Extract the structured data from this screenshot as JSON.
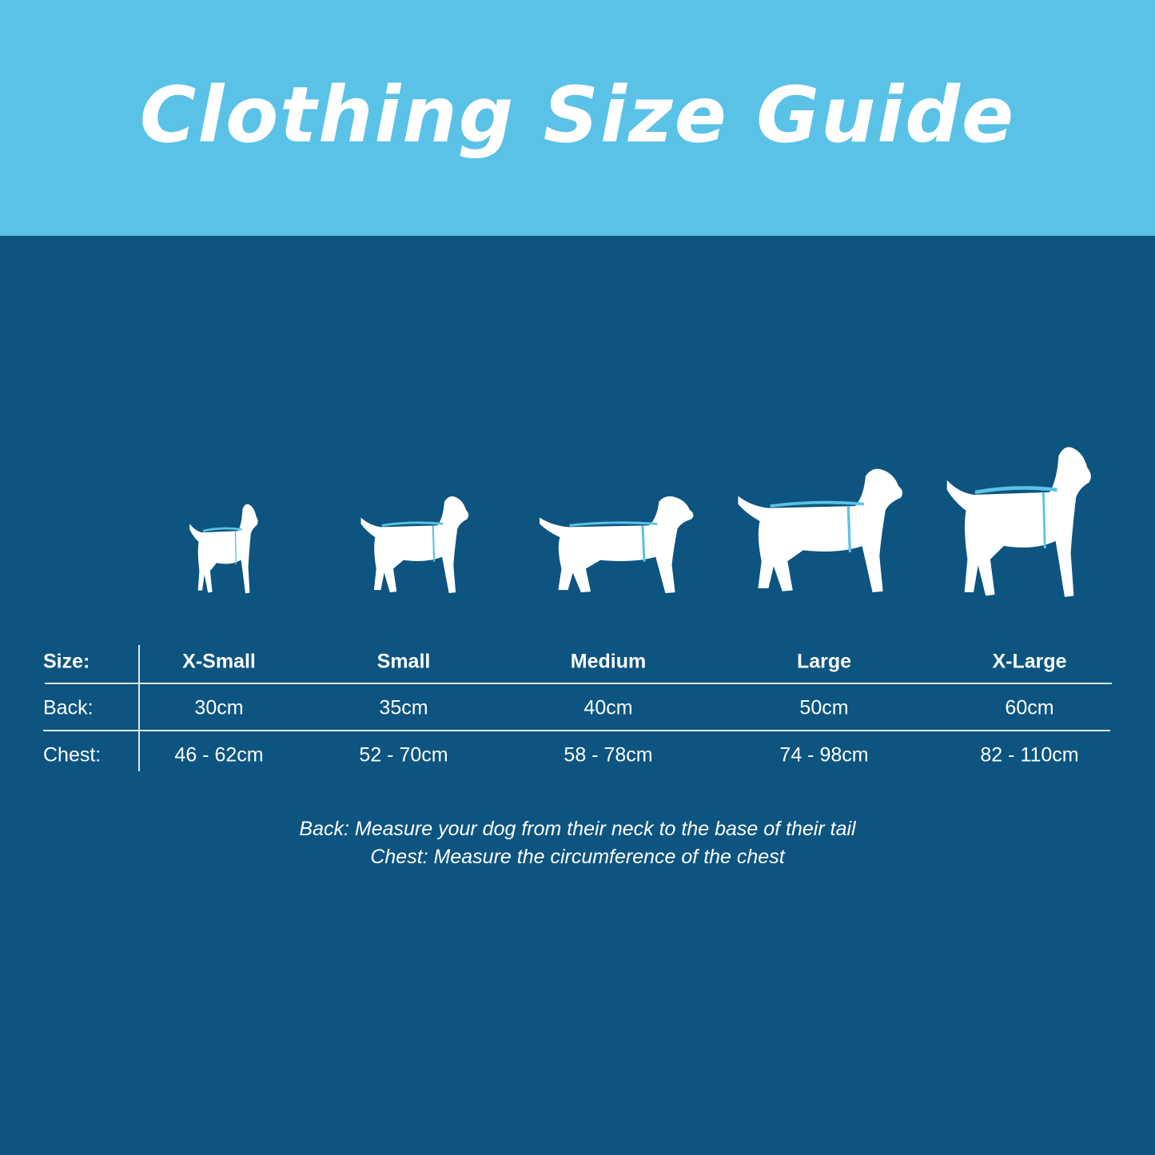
{
  "title": "Clothing Size Guide",
  "colors": {
    "header_bg": "#5bc2e7",
    "body_bg": "#0d5480",
    "measure_line": "#5bc2e7"
  },
  "table": {
    "row_labels": {
      "size": "Size:",
      "back": "Back:",
      "chest": "Chest:"
    },
    "columns": [
      {
        "size": "X-Small",
        "back": "30cm",
        "chest": "46 - 62cm"
      },
      {
        "size": "Small",
        "back": "35cm",
        "chest": "52 - 70cm"
      },
      {
        "size": "Medium",
        "back": "40cm",
        "chest": "58 - 78cm"
      },
      {
        "size": "Large",
        "back": "50cm",
        "chest": "74 - 98cm"
      },
      {
        "size": "X-Large",
        "back": "60cm",
        "chest": "82 - 110cm"
      }
    ]
  },
  "notes": {
    "back": "Back: Measure your dog from their neck to the base of their tail",
    "chest": "Chest: Measure the circumference of the chest"
  }
}
